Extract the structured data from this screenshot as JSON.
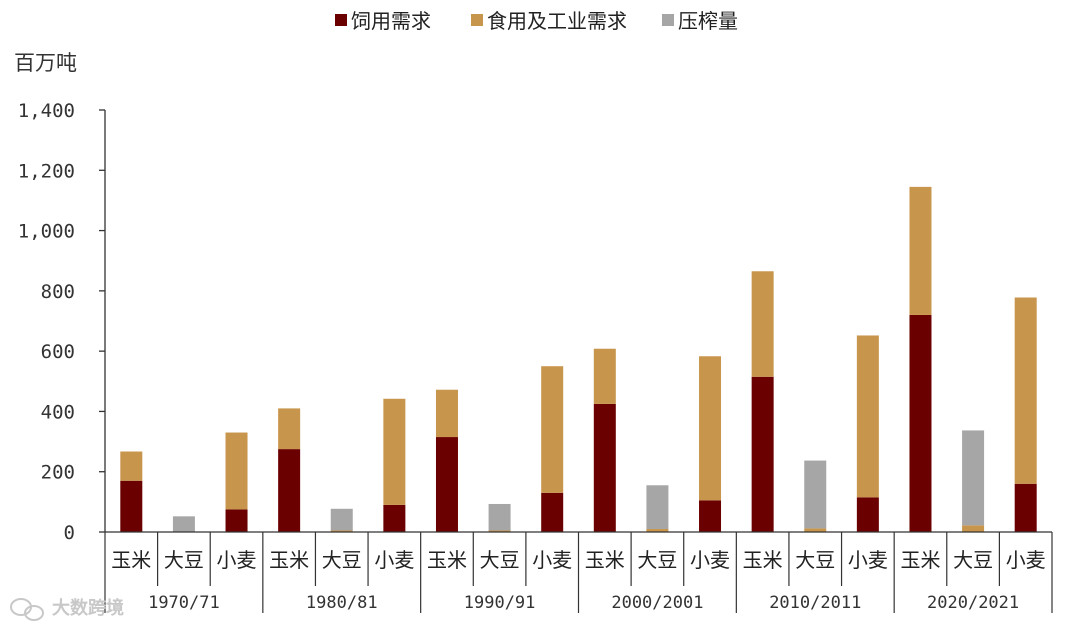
{
  "colors": {
    "feed": "#6b0000",
    "food_industrial": "#c8954c",
    "crush": "#a6a6a6",
    "axis": "#333333"
  },
  "watermark": {
    "text": "大数跨境",
    "icon": "wechat-logo-icon"
  },
  "chart_data": {
    "type": "bar",
    "stacked": true,
    "ylabel": "百万吨",
    "ylim": [
      0,
      1400
    ],
    "yticks": [
      0,
      200,
      400,
      600,
      800,
      1000,
      1200,
      1400
    ],
    "ytick_labels": [
      "0",
      "200",
      "400",
      "600",
      "800",
      "1,000",
      "1,200",
      "1,400"
    ],
    "legend": {
      "position": "top",
      "items": [
        "饲用需求",
        "食用及工业需求",
        "压榨量"
      ]
    },
    "groups": [
      "1970/71",
      "1980/81",
      "1990/91",
      "2000/2001",
      "2010/2011",
      "2020/2021"
    ],
    "categories": [
      "玉米",
      "大豆",
      "小麦"
    ],
    "series": [
      {
        "name": "饲用需求",
        "color_key": "feed",
        "values": [
          [
            170,
            0,
            75
          ],
          [
            275,
            0,
            90
          ],
          [
            315,
            0,
            130
          ],
          [
            425,
            0,
            105
          ],
          [
            515,
            0,
            115
          ],
          [
            720,
            0,
            160
          ]
        ]
      },
      {
        "name": "食用及工业需求",
        "color_key": "food_industrial",
        "values": [
          [
            97,
            0,
            255
          ],
          [
            135,
            5,
            352
          ],
          [
            157,
            5,
            420
          ],
          [
            183,
            10,
            478
          ],
          [
            350,
            12,
            537
          ],
          [
            425,
            22,
            618
          ]
        ]
      },
      {
        "name": "压榨量",
        "color_key": "crush",
        "values": [
          [
            0,
            52,
            0
          ],
          [
            0,
            72,
            0
          ],
          [
            0,
            88,
            0
          ],
          [
            0,
            145,
            0
          ],
          [
            0,
            225,
            0
          ],
          [
            0,
            315,
            0
          ]
        ]
      }
    ]
  }
}
